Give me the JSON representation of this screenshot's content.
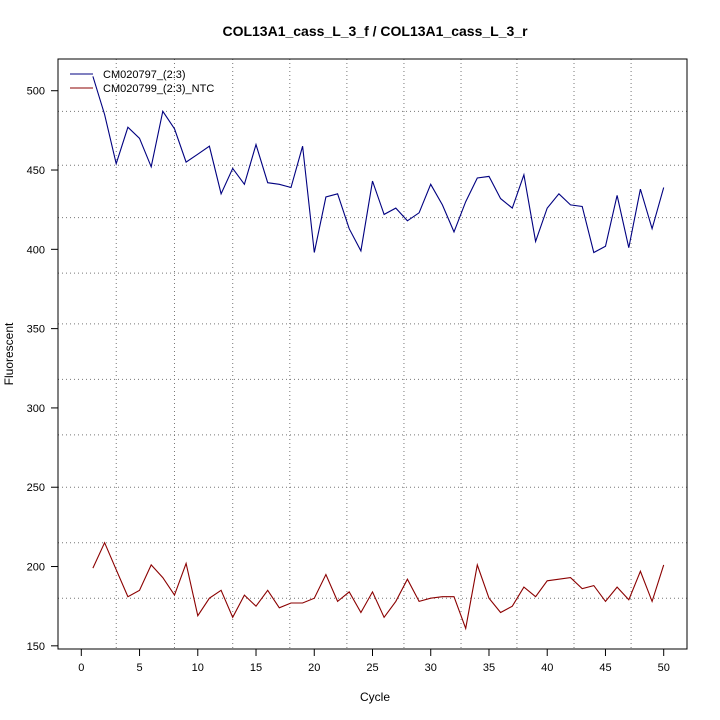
{
  "chart_data": {
    "type": "line",
    "title": "COL13A1_cass_L_3_f / COL13A1_cass_L_3_r",
    "xlabel": "Cycle",
    "ylabel": "Fluorescent",
    "xlim": [
      -2,
      52
    ],
    "ylim": [
      148,
      520
    ],
    "x_ticks": [
      0,
      5,
      10,
      15,
      20,
      25,
      30,
      35,
      40,
      45,
      50
    ],
    "y_ticks": [
      150,
      200,
      250,
      300,
      350,
      400,
      450,
      500
    ],
    "x_grid": [
      3,
      8,
      13,
      17.9,
      22.8,
      27.7,
      32.6,
      37.4,
      42.3,
      47.2
    ],
    "y_grid": [
      180,
      215,
      250,
      283,
      318,
      353,
      385,
      420,
      453,
      487
    ],
    "grid": true,
    "legend_position": "top-left",
    "x": [
      1,
      2,
      3,
      4,
      5,
      6,
      7,
      8,
      9,
      10,
      11,
      12,
      13,
      14,
      15,
      16,
      17,
      18,
      19,
      20,
      21,
      22,
      23,
      24,
      25,
      26,
      27,
      28,
      29,
      30,
      31,
      32,
      33,
      34,
      35,
      36,
      37,
      38,
      39,
      40,
      41,
      42,
      43,
      44,
      45,
      46,
      47,
      48,
      49,
      50
    ],
    "series": [
      {
        "name": "CM020797_(2:3)",
        "color": "#000080",
        "values": [
          509,
          485,
          454,
          477,
          470,
          452,
          487,
          476,
          455,
          460,
          465,
          435,
          451,
          441,
          466,
          442,
          441,
          439,
          465,
          398,
          433,
          435,
          413,
          399,
          443,
          422,
          426,
          418,
          423,
          441,
          428,
          411,
          430,
          445,
          446,
          432,
          426,
          447,
          405,
          426,
          435,
          428,
          427,
          398,
          402,
          434,
          401,
          438,
          413,
          439
        ]
      },
      {
        "name": "CM020799_(2:3)_NTC",
        "color": "#8b0000",
        "values": [
          199,
          215,
          198,
          181,
          185,
          201,
          193,
          182,
          202,
          169,
          180,
          185,
          168,
          182,
          175,
          185,
          174,
          177,
          177,
          180,
          195,
          178,
          184,
          171,
          184,
          168,
          178,
          192,
          178,
          180,
          181,
          181,
          161,
          201,
          180,
          171,
          175,
          187,
          181,
          191,
          192,
          193,
          186,
          188,
          178,
          187,
          179,
          197,
          178,
          201
        ]
      }
    ]
  }
}
